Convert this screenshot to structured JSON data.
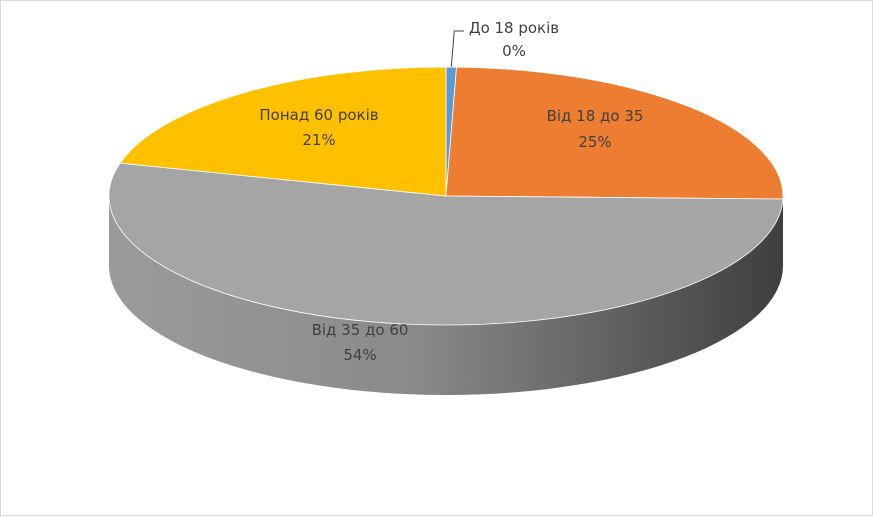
{
  "chart_data": {
    "type": "pie",
    "style": "3d",
    "title": "",
    "slices": [
      {
        "name": "До 18 років",
        "value": 0.5,
        "label_name": "До 18 років",
        "label_pct": "0%",
        "color": "#5b9bd5"
      },
      {
        "name": "Від 18 до 35",
        "value": 25,
        "label_name": "Від 18 до 35",
        "label_pct": "25%",
        "color": "#ed7d31"
      },
      {
        "name": "Від 35 до 60",
        "value": 54,
        "label_name": "Від 35 до 60",
        "label_pct": "54%",
        "color": "#a5a5a5"
      },
      {
        "name": "Понад 60 років",
        "value": 21,
        "label_name": "Понад 60 років",
        "label_pct": "21%",
        "color": "#ffc000"
      }
    ],
    "legend": "none"
  }
}
